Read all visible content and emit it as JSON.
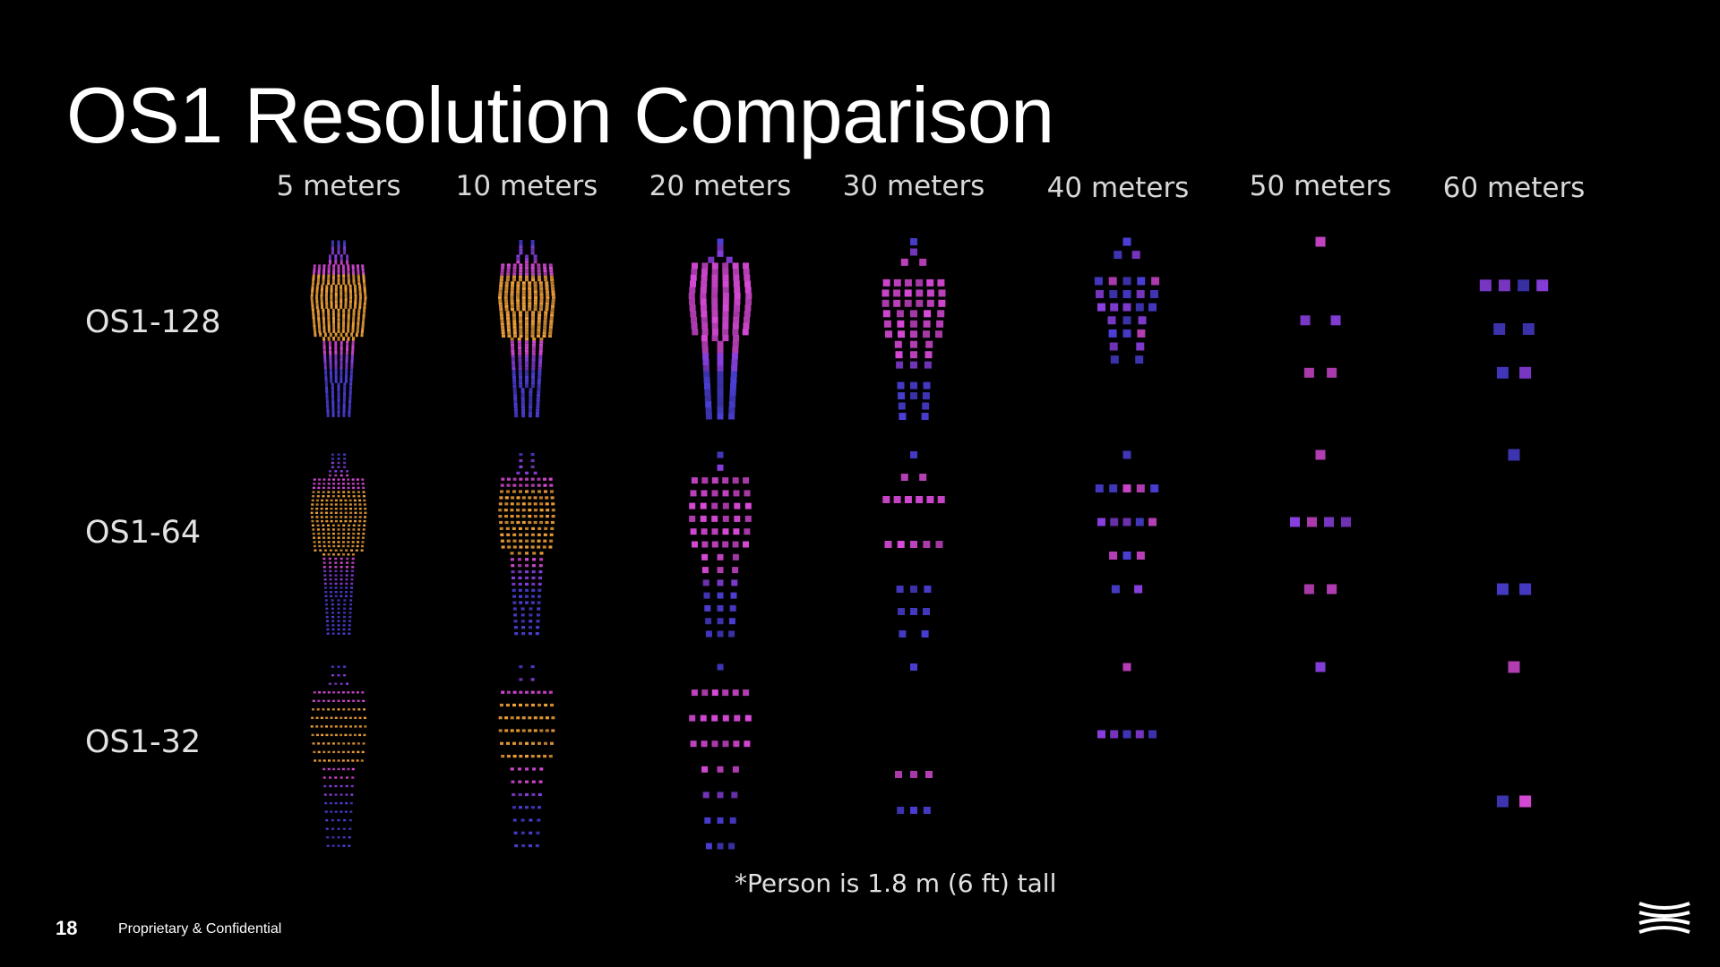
{
  "title": "OS1 Resolution Comparison",
  "distances": [
    "5 meters",
    "10 meters",
    "20 meters",
    "30 meters",
    "40 meters",
    "50 meters",
    "60 meters"
  ],
  "sensors": [
    "OS1-128",
    "OS1-64",
    "OS1-32"
  ],
  "footnote": "*Person is 1.8 m (6 ft) tall",
  "footer": {
    "page_number": "18",
    "confidential": "Proprietary & Confidential"
  },
  "colors": {
    "background": "#000000",
    "point_blue": "#4b3fd6",
    "point_purple": "#8a3fe0",
    "point_magenta": "#d84ad8",
    "point_orange": "#f2a23a"
  },
  "logo_icon": "ouster-logo-icon"
}
